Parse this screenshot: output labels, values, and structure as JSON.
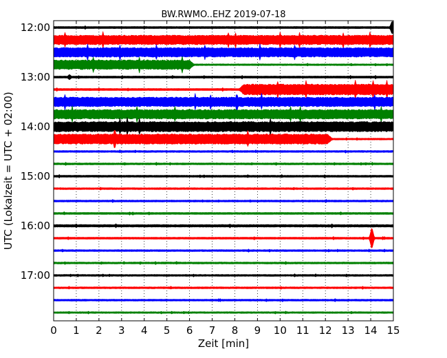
{
  "chart_data": {
    "type": "line",
    "title": "BW.RWMO..EHZ 2019-07-18",
    "xlabel": "Zeit  [min]",
    "ylabel": "UTC (Lokalzeit = UTC + 02:00)",
    "xlim": [
      0,
      15
    ],
    "x_ticks": [
      "0",
      "1",
      "2",
      "3",
      "4",
      "5",
      "6",
      "7",
      "8",
      "9",
      "10",
      "11",
      "12",
      "13",
      "14",
      "15"
    ],
    "y_ticks": [
      "12:00",
      "13:00",
      "14:00",
      "15:00",
      "16:00",
      "17:00"
    ],
    "grid": "vertical dotted at each minute",
    "trace_interval_minutes": 15,
    "color_cycle": [
      "#000000",
      "#ff0000",
      "#0000ff",
      "#008000"
    ],
    "traces": [
      {
        "time": "12:00",
        "color": "#000000",
        "amplitude": 1.5,
        "event": {
          "x": 14.95,
          "amplitude": 10
        }
      },
      {
        "time": "12:15",
        "color": "#ff0000",
        "amplitude": 7
      },
      {
        "time": "12:30",
        "color": "#0000ff",
        "amplitude": 7
      },
      {
        "time": "12:45",
        "color": "#008000",
        "amplitude": 7,
        "amplitude_end": 1.2,
        "change_at": 6.0
      },
      {
        "time": "13:00",
        "color": "#000000",
        "amplitude": 1.5,
        "event": {
          "x": 0.7,
          "amplitude": 4
        }
      },
      {
        "time": "13:15",
        "color": "#ff0000",
        "amplitude": 1.5,
        "amplitude_end": 8,
        "change_at": 8.2
      },
      {
        "time": "13:30",
        "color": "#0000ff",
        "amplitude": 7
      },
      {
        "time": "13:45",
        "color": "#008000",
        "amplitude": 7
      },
      {
        "time": "14:00",
        "color": "#000000",
        "amplitude": 7.5
      },
      {
        "time": "14:15",
        "color": "#ff0000",
        "amplitude": 7.5,
        "amplitude_end": 1.2,
        "change_at": 12.1
      },
      {
        "time": "14:30",
        "color": "#0000ff",
        "amplitude": 1.3
      },
      {
        "time": "14:45",
        "color": "#008000",
        "amplitude": 1.3
      },
      {
        "time": "15:00",
        "color": "#000000",
        "amplitude": 1.4
      },
      {
        "time": "15:15",
        "color": "#ff0000",
        "amplitude": 1.3
      },
      {
        "time": "15:30",
        "color": "#0000ff",
        "amplitude": 1.3
      },
      {
        "time": "15:45",
        "color": "#008000",
        "amplitude": 1.4
      },
      {
        "time": "16:00",
        "color": "#000000",
        "amplitude": 1.8
      },
      {
        "time": "16:15",
        "color": "#ff0000",
        "amplitude": 1.4,
        "event": {
          "x": 14.05,
          "amplitude": 16
        }
      },
      {
        "time": "16:30",
        "color": "#0000ff",
        "amplitude": 1.3
      },
      {
        "time": "16:45",
        "color": "#008000",
        "amplitude": 1.3
      },
      {
        "time": "17:00",
        "color": "#000000",
        "amplitude": 1.3
      },
      {
        "time": "17:15",
        "color": "#ff0000",
        "amplitude": 1.3
      },
      {
        "time": "17:30",
        "color": "#0000ff",
        "amplitude": 1.3
      },
      {
        "time": "17:45",
        "color": "#008000",
        "amplitude": 1.2
      }
    ]
  }
}
